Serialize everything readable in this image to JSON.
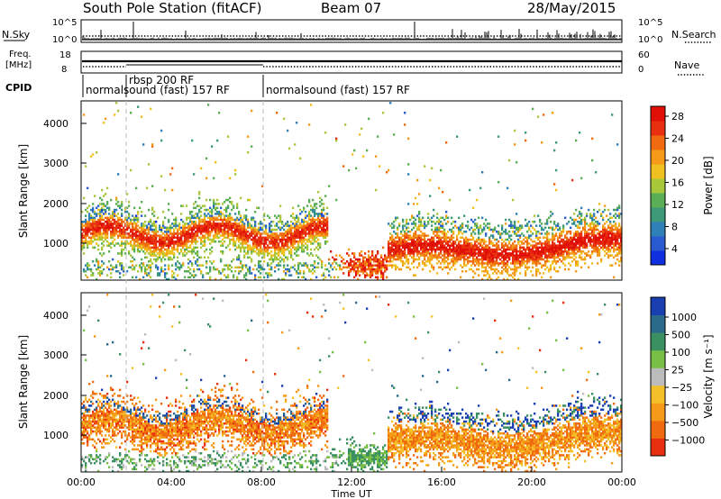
{
  "header": {
    "station": "South Pole Station (fitACF)",
    "beam": "Beam 07",
    "date": "28/May/2015"
  },
  "top_panels": {
    "nsky_label": "N.Sky",
    "nsearch_label": "N.Search",
    "nsky_ticks": [
      "10^5",
      "10^0"
    ],
    "nsearch_ticks": [
      "10^5",
      "10^0"
    ],
    "freq_label_1": "Freq.",
    "freq_label_2": "[MHz]",
    "freq_ticks": [
      "18",
      "8"
    ],
    "nave_label": "Nave",
    "nave_ticks": [
      "60",
      "0"
    ],
    "cpid_label": "CPID",
    "cpid_segments": [
      {
        "label": "normalsound (fast) 157 RF"
      },
      {
        "label": "rbsp 200 RF"
      },
      {
        "label": "normalsound (fast) 157 RF"
      }
    ]
  },
  "chart_data": [
    {
      "type": "heatmap",
      "name": "power",
      "ylabel": "Slant Range [km]",
      "yticks": [
        "1000",
        "2000",
        "3000",
        "4000"
      ],
      "ylim": [
        180,
        4500
      ],
      "xlim_hours": [
        0,
        24
      ],
      "colorbar": {
        "label": "Power [dB]",
        "ticks": [
          "4",
          "8",
          "12",
          "16",
          "20",
          "24",
          "28"
        ],
        "range": [
          0,
          30
        ],
        "colors": [
          "#1030e0",
          "#2a5ad0",
          "#2f7fb8",
          "#3d9a78",
          "#5aae55",
          "#a8c83a",
          "#f0c020",
          "#f59a18",
          "#f06a10",
          "#e83010",
          "#e01008"
        ]
      }
    },
    {
      "type": "heatmap",
      "name": "velocity",
      "ylabel": "Slant Range [km]",
      "yticks": [
        "1000",
        "2000",
        "3000",
        "4000"
      ],
      "ylim": [
        180,
        4500
      ],
      "xlim_hours": [
        0,
        24
      ],
      "xticks": [
        "00:00",
        "04:00",
        "08:00",
        "12:00",
        "16:00",
        "20:00",
        "00:00"
      ],
      "xlabel": "Time UT",
      "colorbar": {
        "label": "Velocity [m s⁻¹]",
        "ticks": [
          "1000",
          "500",
          "100",
          "25",
          "−25",
          "−100",
          "−500",
          "−1000"
        ],
        "colors": [
          "#1a3fb0",
          "#2c6a8c",
          "#3a9060",
          "#78bf46",
          "#bcbcbc",
          "#f4c02a",
          "#f59a18",
          "#f06a10",
          "#e83010"
        ]
      }
    }
  ]
}
